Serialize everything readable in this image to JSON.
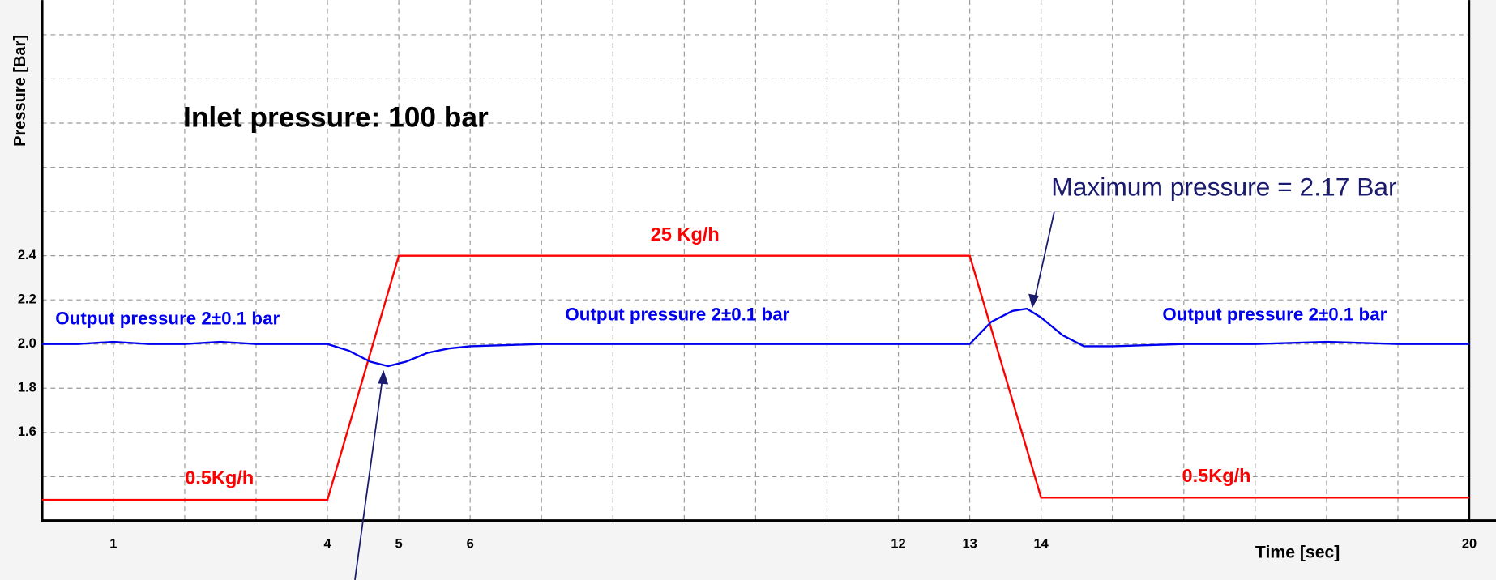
{
  "chart_data": {
    "type": "line",
    "y_label": "Pressure [Bar]",
    "x_label": "Time [sec]",
    "xlim": [
      0,
      20
    ],
    "xticks": [
      1,
      4,
      5,
      6,
      12,
      13,
      14,
      20
    ],
    "x_minor_ticks": [
      2,
      3,
      7,
      8,
      9,
      10,
      11,
      15,
      16,
      17,
      18,
      19
    ],
    "ylim": [
      1.2,
      3.557
    ],
    "yticks": [
      1.6,
      1.8,
      {
        "value": 2,
        "label": "2.0"
      },
      2.2,
      2.4
    ],
    "y_minor_ticks": [
      1.4,
      2.6,
      2.8,
      3.0,
      3.2,
      3.4
    ],
    "grid": true,
    "series": [
      {
        "color": "#ff0000",
        "x": [
          0,
          4,
          5,
          13,
          14,
          20
        ],
        "values": [
          1.295,
          1.295,
          2.4,
          2.4,
          1.305,
          1.305
        ]
      },
      {
        "color": "#0000ee",
        "x": [
          0,
          0.5,
          1,
          1.5,
          2,
          2.5,
          3,
          3.5,
          4,
          4.3,
          4.6,
          4.85,
          5.1,
          5.4,
          5.7,
          6,
          7,
          8,
          9,
          10,
          11,
          12,
          12.5,
          13,
          13.3,
          13.6,
          13.8,
          14.0,
          14.3,
          14.6,
          15,
          16,
          17,
          18,
          19,
          20
        ],
        "values": [
          2.0,
          2.0,
          2.01,
          2.0,
          2.0,
          2.01,
          2.0,
          2.0,
          2.0,
          1.97,
          1.92,
          1.9,
          1.92,
          1.96,
          1.98,
          1.99,
          2.0,
          2.0,
          2.0,
          2.0,
          2.0,
          2.0,
          2.0,
          2.0,
          2.1,
          2.15,
          2.16,
          2.12,
          2.04,
          1.99,
          1.99,
          2.0,
          2.0,
          2.01,
          2.0,
          2.0
        ]
      }
    ],
    "annotations": [
      "Inlet pressure: 100 bar",
      "25 Kg/h",
      "0.5Kg/h",
      "0.5Kg/h",
      "Output pressure 2±0.1 bar",
      "Output pressure 2±0.1 bar",
      "Output pressure 2±0.1 bar",
      "Maximum pressure = 2.17 Bar"
    ]
  }
}
